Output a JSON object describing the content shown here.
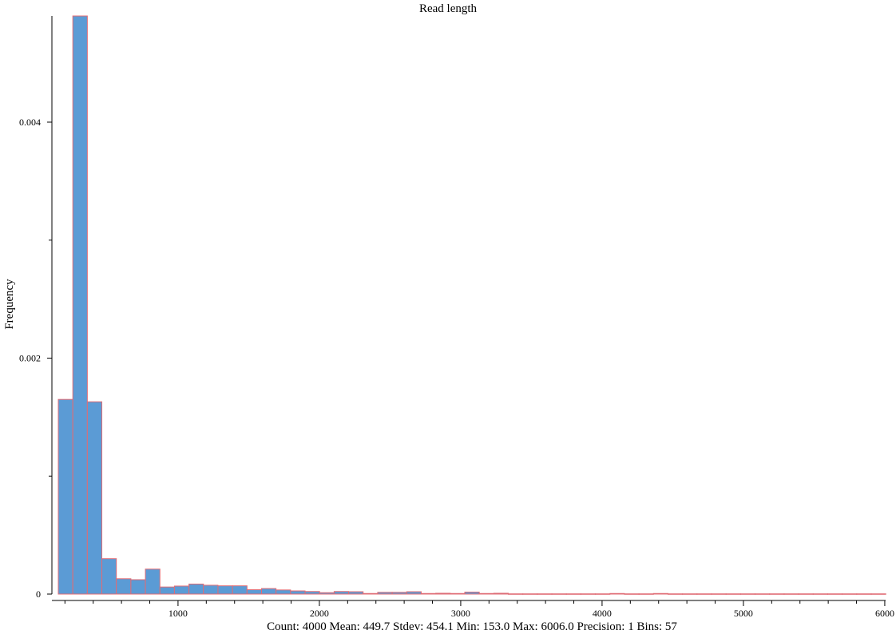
{
  "chart_data": {
    "type": "bar",
    "title": "Read length",
    "xlabel": "Count: 4000 Mean: 449.7 Stdev: 454.1 Min: 153.0 Max: 6006.0 Precision: 1 Bins: 57",
    "ylabel": "Frequency",
    "xlim": [
      153,
      6006
    ],
    "ylim": [
      0,
      0.0049
    ],
    "bin_width": 102.7,
    "x_ticks_major": [
      1000,
      2000,
      3000,
      4000,
      5000,
      6000
    ],
    "x_tick_labels": [
      "1000",
      "2000",
      "3000",
      "4000",
      "5000",
      "6000"
    ],
    "y_ticks_major": [
      0,
      0.002,
      0.004
    ],
    "y_tick_labels": [
      "0",
      "0.002",
      "0.004"
    ],
    "y_ticks_minor": [
      0.001,
      0.003
    ],
    "bin_starts": [
      153,
      255.7,
      358.4,
      461.1,
      563.8,
      666.5,
      769.2,
      871.9,
      974.6,
      1077.3,
      1180,
      1282.7,
      1385.4,
      1488.1,
      1590.8,
      1693.5,
      1796.2,
      1898.9,
      2001.6,
      2104.3,
      2207,
      2309.7,
      2412.4,
      2515.1,
      2617.8,
      2720.5,
      2823.2,
      2925.9,
      3028.6,
      3131.3,
      3234,
      3336.7,
      3439.4,
      3542.1,
      3644.8,
      3747.5,
      3850.2,
      3952.9,
      4055.6,
      4158.3,
      4261,
      4363.7,
      4466.4,
      4569.1,
      4671.8,
      4774.5,
      4877.2,
      4979.9,
      5082.6,
      5185.3,
      5288,
      5390.7,
      5493.4,
      5596.1,
      5698.8,
      5801.5,
      5904.2
    ],
    "values": [
      0.00165,
      0.0049,
      0.00163,
      0.0003,
      0.00013,
      0.000122,
      0.000212,
      6e-05,
      6.8e-05,
      8.5e-05,
      7.5e-05,
      7e-05,
      7e-05,
      3.7e-05,
      4.7e-05,
      3.5e-05,
      2.7e-05,
      2.2e-05,
      1.2e-05,
      2.2e-05,
      2e-05,
      5e-06,
      1.5e-05,
      1.5e-05,
      2e-05,
      5e-06,
      7e-06,
      5e-06,
      1.7e-05,
      5e-06,
      7e-06,
      2e-06,
      2e-06,
      2e-06,
      2e-06,
      2e-06,
      2e-06,
      2e-06,
      5e-06,
      2e-06,
      2e-06,
      5e-06,
      2e-06,
      2e-06,
      2e-06,
      2e-06,
      2e-06,
      2e-06,
      2e-06,
      2e-06,
      2e-06,
      2e-06,
      2e-06,
      2e-06,
      2e-06,
      2e-06,
      2e-06
    ],
    "bar_fill": "#5b9bd5",
    "bar_stroke": "#e06c75",
    "grid": false,
    "legend": "none"
  }
}
